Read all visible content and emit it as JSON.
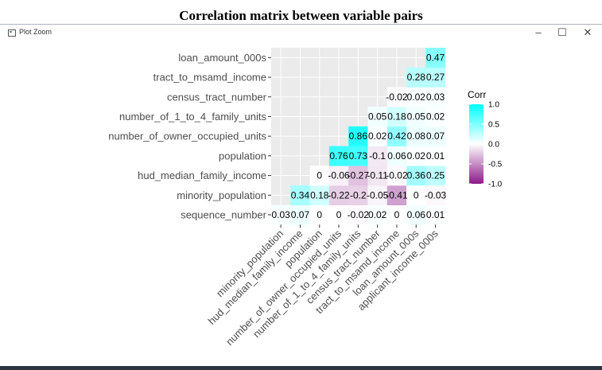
{
  "page_title": "Correlation matrix between variable pairs",
  "window": {
    "title": "Plot Zoom",
    "minimize_icon": "–",
    "maximize_icon": "☐",
    "close_icon": "✕"
  },
  "chart_data": {
    "type": "heatmap",
    "title": "",
    "xlabel": "",
    "ylabel": "",
    "y_labels": [
      "sequence_number",
      "minority_population",
      "hud_median_family_income",
      "population",
      "number_of_owner_occupied_units",
      "number_of_1_to_4_family_units",
      "census_tract_number",
      "tract_to_msamd_income",
      "loan_amount_000s"
    ],
    "x_labels": [
      "minority_population",
      "hud_median_family_income",
      "population",
      "number_of_owner_occupied_units",
      "number_of_1_to_4_family_units",
      "census_tract_number",
      "tract_to_msamd_income",
      "loan_amount_000s",
      "applicant_income_000s"
    ],
    "cells": [
      {
        "row": 0,
        "col": 0,
        "value": 0.03,
        "label": "0.03"
      },
      {
        "row": 0,
        "col": 1,
        "value": 0.07,
        "label": "0.07"
      },
      {
        "row": 0,
        "col": 2,
        "value": 0,
        "label": "0"
      },
      {
        "row": 0,
        "col": 3,
        "value": 0,
        "label": "0"
      },
      {
        "row": 0,
        "col": 4,
        "value": -0.02,
        "label": "-0.02"
      },
      {
        "row": 0,
        "col": 5,
        "value": 0.02,
        "label": "0.02"
      },
      {
        "row": 0,
        "col": 6,
        "value": 0,
        "label": "0"
      },
      {
        "row": 0,
        "col": 7,
        "value": 0.06,
        "label": "0.06"
      },
      {
        "row": 0,
        "col": 8,
        "value": 0.01,
        "label": "0.01"
      },
      {
        "row": 1,
        "col": 1,
        "value": 0.34,
        "label": "0.34"
      },
      {
        "row": 1,
        "col": 2,
        "value": 0.18,
        "label": "0.18"
      },
      {
        "row": 1,
        "col": 3,
        "value": -0.22,
        "label": "-0.22"
      },
      {
        "row": 1,
        "col": 4,
        "value": -0.2,
        "label": "-0.2"
      },
      {
        "row": 1,
        "col": 5,
        "value": -0.05,
        "label": "-0.05"
      },
      {
        "row": 1,
        "col": 6,
        "value": -0.41,
        "label": "-0.41"
      },
      {
        "row": 1,
        "col": 7,
        "value": 0,
        "label": "0"
      },
      {
        "row": 1,
        "col": 8,
        "value": -0.03,
        "label": "-0.03"
      },
      {
        "row": 2,
        "col": 2,
        "value": 0,
        "label": "0"
      },
      {
        "row": 2,
        "col": 3,
        "value": -0.06,
        "label": "-0.06"
      },
      {
        "row": 2,
        "col": 4,
        "value": -0.27,
        "label": "-0.27"
      },
      {
        "row": 2,
        "col": 5,
        "value": -0.11,
        "label": "-0.11"
      },
      {
        "row": 2,
        "col": 6,
        "value": -0.02,
        "label": "-0.02"
      },
      {
        "row": 2,
        "col": 7,
        "value": 0.36,
        "label": "0.36"
      },
      {
        "row": 2,
        "col": 8,
        "value": 0.25,
        "label": "0.25"
      },
      {
        "row": 3,
        "col": 3,
        "value": 0.76,
        "label": "0.76"
      },
      {
        "row": 3,
        "col": 4,
        "value": 0.73,
        "label": "0.73"
      },
      {
        "row": 3,
        "col": 5,
        "value": -0.1,
        "label": "-0.1"
      },
      {
        "row": 3,
        "col": 6,
        "value": 0.06,
        "label": "0.06"
      },
      {
        "row": 3,
        "col": 7,
        "value": 0.02,
        "label": "0.02"
      },
      {
        "row": 3,
        "col": 8,
        "value": 0.01,
        "label": "0.01"
      },
      {
        "row": 4,
        "col": 4,
        "value": 0.86,
        "label": "0.86"
      },
      {
        "row": 4,
        "col": 5,
        "value": 0.02,
        "label": "0.02"
      },
      {
        "row": 4,
        "col": 6,
        "value": 0.42,
        "label": "0.42"
      },
      {
        "row": 4,
        "col": 7,
        "value": 0.08,
        "label": "0.08"
      },
      {
        "row": 4,
        "col": 8,
        "value": 0.07,
        "label": "0.07"
      },
      {
        "row": 5,
        "col": 5,
        "value": 0.05,
        "label": "0.05"
      },
      {
        "row": 5,
        "col": 6,
        "value": 0.18,
        "label": "0.18"
      },
      {
        "row": 5,
        "col": 7,
        "value": 0.05,
        "label": "0.05"
      },
      {
        "row": 5,
        "col": 8,
        "value": 0.02,
        "label": "0.02"
      },
      {
        "row": 6,
        "col": 6,
        "value": -0.02,
        "label": "-0.02"
      },
      {
        "row": 6,
        "col": 7,
        "value": 0.02,
        "label": "0.02"
      },
      {
        "row": 6,
        "col": 8,
        "value": 0.03,
        "label": "0.03"
      },
      {
        "row": 7,
        "col": 7,
        "value": 0.28,
        "label": "0.28"
      },
      {
        "row": 7,
        "col": 8,
        "value": 0.27,
        "label": "0.27"
      },
      {
        "row": 8,
        "col": 8,
        "value": 0.47,
        "label": "0.47"
      }
    ],
    "legend": {
      "title": "Corr",
      "ticks": [
        "1.0",
        "0.5",
        "0.0",
        "-0.5",
        "-1.0"
      ],
      "range": [
        -1,
        1
      ],
      "position": "right"
    },
    "colors": {
      "high": "#00ffff",
      "mid": "#ffffff",
      "low": "#8b1a89",
      "panel": "#ebebeb",
      "grid": "#ffffff"
    }
  }
}
